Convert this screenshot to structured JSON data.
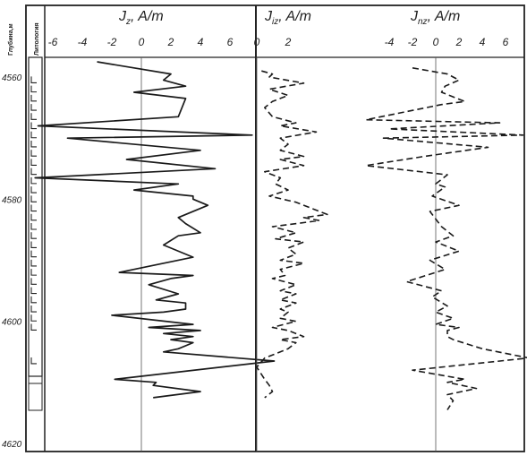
{
  "chart_data": [
    {
      "type": "line",
      "track": "depth",
      "ylabel": "Глубина,м",
      "ylim": [
        4555,
        4622
      ],
      "y_ticks": [
        4560,
        4580,
        4600,
        4620
      ]
    },
    {
      "type": "table",
      "track": "lithology",
      "label": "Литология",
      "symbol": "L",
      "cells": [
        4560.5,
        4562,
        4563.5,
        4565,
        4566.5,
        4568,
        4569.5,
        4571,
        4572.5,
        4574,
        4575.5,
        4577,
        4578.5,
        4580,
        4581.5,
        4583,
        4584.5,
        4586,
        4587.5,
        4589,
        4590.5,
        4592,
        4593.5,
        4595,
        4596.5,
        4598,
        4599.5,
        4601,
        4606.5
      ]
    },
    {
      "type": "line",
      "track": "jz",
      "title_main": "J",
      "title_sub": "z",
      "title_unit": ", A/m",
      "xlim": [
        -7.5,
        8.5
      ],
      "x_ticks": [
        -6,
        -4,
        -2,
        0,
        2,
        4,
        6
      ],
      "ylim": [
        4555,
        4622
      ],
      "series": [
        {
          "style": "solid",
          "x": [
            -3.0,
            2.0,
            1.5,
            3.0,
            -0.5,
            3.0,
            2.5,
            -7.0,
            7.5,
            -5.0,
            4.0,
            -1.0,
            5.0,
            -7.2,
            2.5,
            -0.5,
            3.5,
            3.5,
            4.5,
            2.5,
            3.0,
            4.0,
            2.5,
            1.5,
            3.5,
            -1.5,
            3.5,
            2.0,
            0.5,
            2.5,
            1.0,
            3.0,
            3.0,
            1.5,
            -2.0,
            3.5,
            0.5,
            4.0,
            1.5,
            3.5,
            2.0,
            3.5,
            2.5,
            1.5,
            9.0,
            -1.8,
            1.0,
            0.8,
            4.0,
            0.8
          ],
          "y": [
            4557.5,
            4559.5,
            4560.5,
            4561.5,
            4562.5,
            4563.5,
            4566.5,
            4568.0,
            4569.5,
            4570.0,
            4572.0,
            4573.5,
            4575.0,
            4576.5,
            4577.5,
            4578.5,
            4579.5,
            4580.0,
            4581.0,
            4583.0,
            4584.0,
            4585.5,
            4586.0,
            4587.5,
            4589.5,
            4592.0,
            4592.5,
            4593.0,
            4594.0,
            4595.5,
            4596.5,
            4597.0,
            4598.0,
            4598.5,
            4599.0,
            4600.5,
            4601.0,
            4601.5,
            4602.0,
            4602.5,
            4603.0,
            4603.5,
            4604.5,
            4605.0,
            4606.5,
            4609.5,
            4610.0,
            4610.5,
            4611.5,
            4612.5
          ]
        }
      ]
    },
    {
      "type": "line",
      "track": "jiz",
      "title_main": "J",
      "title_sub": "iz",
      "title_unit": ", A/m",
      "xlim": [
        -0.5,
        7.5
      ],
      "x_ticks": [
        0,
        2
      ],
      "ylim": [
        4555,
        4622
      ],
      "series": [
        {
          "style": "dashed",
          "x": [
            0.3,
            1.0,
            0.8,
            3.0,
            0.8,
            2.0,
            1.0,
            0.5,
            1.0,
            2.5,
            1.5,
            3.8,
            1.5,
            2.0,
            1.5,
            3.0,
            1.5,
            3.0,
            0.5,
            1.5,
            1.2,
            2.0,
            0.8,
            2.5,
            3.5,
            4.5,
            3.0,
            4.0,
            1.0,
            2.5,
            1.2,
            3.0,
            2.0,
            2.5,
            1.5,
            3.0,
            1.5,
            1.8,
            1.0,
            2.5,
            1.5,
            2.5,
            1.5,
            2.5,
            1.5,
            2.0,
            1.5,
            2.5,
            1.0,
            2.0,
            3.0,
            1.5,
            2.5,
            2.0,
            1.5,
            0.5,
            0.0,
            0.5,
            0.8,
            1.0,
            0.5
          ],
          "y": [
            4559.0,
            4559.5,
            4560.0,
            4561.0,
            4562.0,
            4563.0,
            4564.0,
            4565.0,
            4566.5,
            4567.5,
            4568.0,
            4569.0,
            4570.0,
            4571.0,
            4572.0,
            4573.0,
            4573.5,
            4574.5,
            4575.5,
            4576.5,
            4577.5,
            4578.5,
            4579.5,
            4580.5,
            4581.5,
            4582.5,
            4583.0,
            4583.5,
            4584.5,
            4585.5,
            4586.5,
            4587.0,
            4588.0,
            4589.0,
            4590.0,
            4590.5,
            4591.5,
            4592.5,
            4593.0,
            4594.0,
            4595.0,
            4595.5,
            4596.5,
            4597.0,
            4598.0,
            4598.5,
            4599.5,
            4600.0,
            4601.0,
            4601.5,
            4602.5,
            4603.0,
            4603.5,
            4604.5,
            4605.0,
            4606.0,
            4607.5,
            4609.5,
            4610.5,
            4611.5,
            4612.5
          ]
        }
      ]
    },
    {
      "type": "line",
      "track": "jnz",
      "title_main": "J",
      "title_sub": "nz",
      "title_unit": ", A/m",
      "xlim": [
        -6.5,
        8.0
      ],
      "x_ticks": [
        -4,
        -2,
        0,
        2,
        4,
        6
      ],
      "ylim": [
        4555,
        4622
      ],
      "series": [
        {
          "style": "dashed",
          "x": [
            -2.0,
            1.0,
            2.0,
            0.8,
            0.5,
            2.5,
            0.5,
            -6.0,
            5.5,
            -4.0,
            7.5,
            -4.5,
            4.5,
            -1.0,
            -6.0,
            1.0,
            0.0,
            0.8,
            -0.3,
            2.0,
            -0.5,
            0.5,
            1.5,
            0.0,
            2.0,
            -0.5,
            0.8,
            -2.5,
            0.5,
            -0.3,
            1.0,
            0.0,
            1.5,
            0.0,
            2.0,
            1.0,
            1.0,
            1.5,
            4.0,
            8.0,
            -2.0,
            2.5,
            1.0,
            3.5,
            1.0,
            1.5,
            1.0
          ],
          "y": [
            4558.5,
            4559.5,
            4560.5,
            4561.5,
            4562.5,
            4564.0,
            4564.5,
            4567.0,
            4567.5,
            4568.5,
            4569.5,
            4570.0,
            4571.5,
            4573.0,
            4574.5,
            4576.0,
            4577.5,
            4578.0,
            4579.5,
            4581.0,
            4582.0,
            4584.5,
            4586.0,
            4587.0,
            4588.5,
            4590.0,
            4591.5,
            4593.5,
            4595.0,
            4596.0,
            4597.5,
            4598.5,
            4599.5,
            4600.5,
            4601.0,
            4601.5,
            4602.5,
            4603.0,
            4604.5,
            4606.0,
            4608.0,
            4609.5,
            4610.0,
            4611.0,
            4612.0,
            4613.0,
            4614.5
          ]
        }
      ]
    }
  ]
}
